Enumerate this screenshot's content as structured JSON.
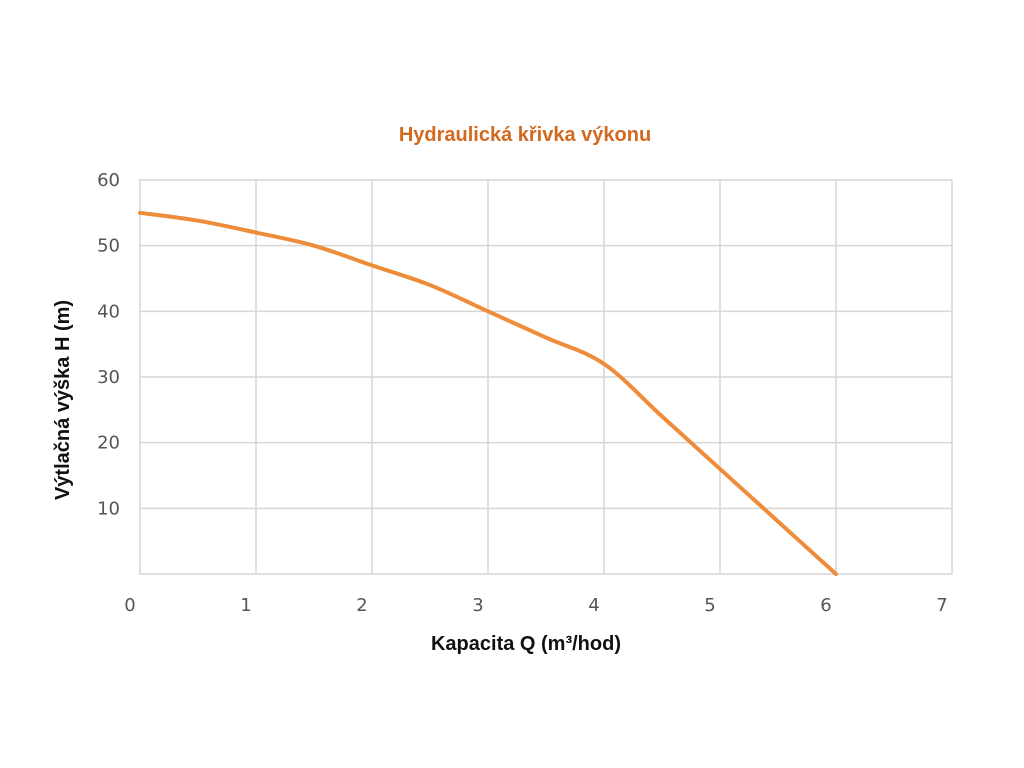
{
  "chart_data": {
    "type": "line",
    "title": "Hydraulická křivka výkonu",
    "xlabel": "Kapacita Q (m³/hod)",
    "ylabel": "Výtlačná výška H (m)",
    "xlim": [
      0,
      7
    ],
    "ylim": [
      0,
      60
    ],
    "x_ticks": [
      "0",
      "1",
      "2",
      "3",
      "4",
      "5",
      "6",
      "7"
    ],
    "y_ticks": [
      "10",
      "20",
      "30",
      "40",
      "50",
      "60"
    ],
    "grid": true,
    "color": "#ee8c3a",
    "title_color": "#d2691e",
    "series": [
      {
        "x": [
          0,
          0.5,
          1,
          1.5,
          2,
          2.5,
          3,
          3.5,
          4,
          4.5,
          5,
          5.5,
          6
        ],
        "y": [
          55,
          53.8,
          52,
          50,
          47,
          44,
          40,
          36,
          32,
          24,
          16,
          8,
          0
        ]
      }
    ]
  }
}
